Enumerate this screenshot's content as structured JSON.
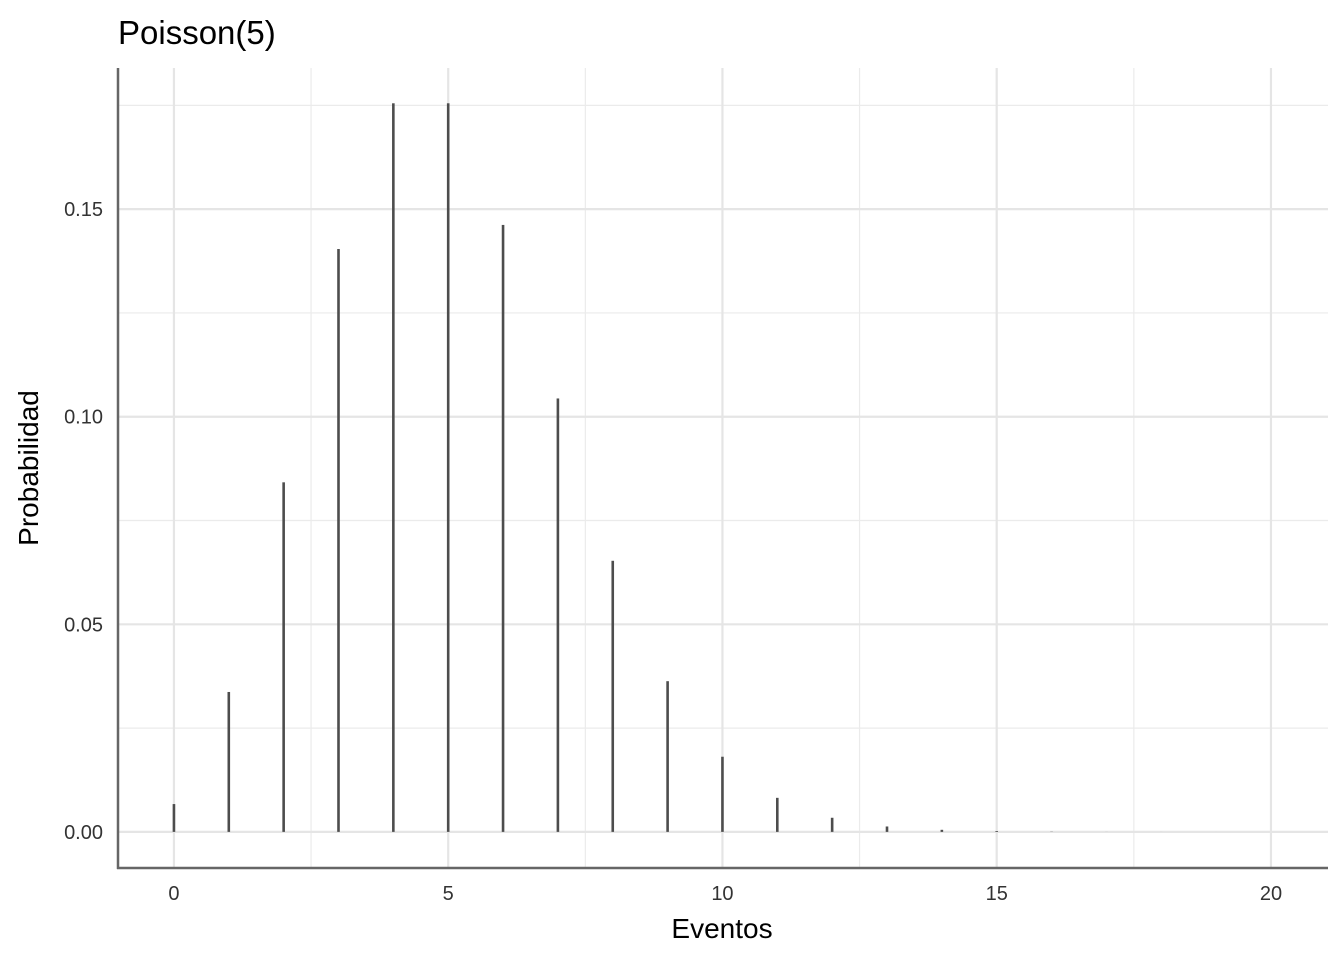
{
  "chart_data": {
    "type": "bar",
    "title": "Poisson(5)",
    "x_label": "Eventos",
    "y_label": "Probabilidad",
    "x": [
      0,
      1,
      2,
      3,
      4,
      5,
      6,
      7,
      8,
      9,
      10,
      11,
      12,
      13,
      14,
      15,
      16,
      17,
      18,
      19,
      20
    ],
    "values": [
      0.0067,
      0.0337,
      0.0842,
      0.1404,
      0.1755,
      0.1755,
      0.1462,
      0.1044,
      0.0653,
      0.0363,
      0.0181,
      0.0082,
      0.0034,
      0.0013,
      0.0005,
      0.0002,
      5e-05,
      1e-05,
      4e-06,
      1e-06,
      3e-07
    ],
    "color": "#4d4d4d",
    "xlim": [
      -1.02,
      21.04
    ],
    "xticks": [
      0,
      5,
      10,
      15,
      20
    ],
    "ylim": [
      -0.0087,
      0.184
    ],
    "yticks": [
      {
        "value": 0,
        "label": "0.00"
      },
      {
        "value": 0.05,
        "label": "0.05"
      },
      {
        "value": 0.1,
        "label": "0.10"
      },
      {
        "value": 0.15,
        "label": "0.15"
      }
    ],
    "grid": true
  }
}
